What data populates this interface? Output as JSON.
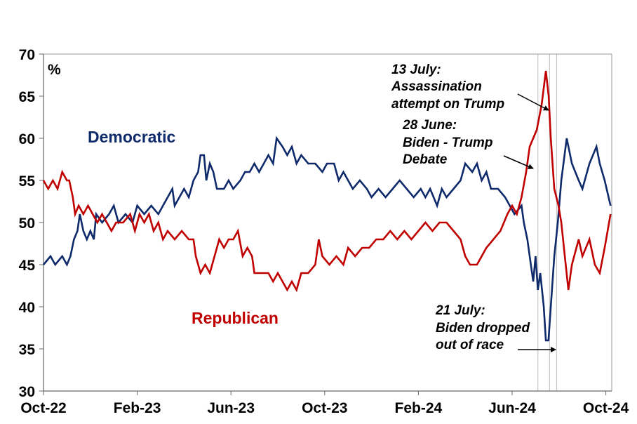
{
  "chart_data": {
    "type": "line",
    "title": "",
    "ylabel": "%",
    "xlabel": "",
    "ylim": [
      30,
      70
    ],
    "yticks": [
      "30",
      "35",
      "40",
      "45",
      "50",
      "55",
      "60",
      "65",
      "70"
    ],
    "x_unit": "months since Oct-22",
    "xlim": [
      0,
      24.2
    ],
    "xticks": [
      {
        "label": "Oct-22",
        "month": 0
      },
      {
        "label": "Feb-23",
        "month": 4
      },
      {
        "label": "Jun-23",
        "month": 8
      },
      {
        "label": "Oct-23",
        "month": 12
      },
      {
        "label": "Feb-24",
        "month": 16
      },
      {
        "label": "Jun-24",
        "month": 20
      },
      {
        "label": "Oct-24",
        "month": 24
      }
    ],
    "grid": false,
    "series": [
      {
        "name": "Democratic",
        "color": "#0f2a6b",
        "points": [
          [
            0,
            45
          ],
          [
            0.3,
            46
          ],
          [
            0.5,
            45
          ],
          [
            0.8,
            46
          ],
          [
            1.0,
            45
          ],
          [
            1.15,
            46
          ],
          [
            1.3,
            48
          ],
          [
            1.45,
            49
          ],
          [
            1.55,
            51
          ],
          [
            1.7,
            49
          ],
          [
            1.85,
            48
          ],
          [
            2.0,
            49
          ],
          [
            2.15,
            48
          ],
          [
            2.25,
            51
          ],
          [
            2.5,
            50
          ],
          [
            2.8,
            51
          ],
          [
            3.0,
            52
          ],
          [
            3.2,
            50
          ],
          [
            3.5,
            51
          ],
          [
            3.8,
            50
          ],
          [
            4.0,
            52
          ],
          [
            4.3,
            51
          ],
          [
            4.6,
            52
          ],
          [
            4.9,
            51
          ],
          [
            5.1,
            52
          ],
          [
            5.3,
            53
          ],
          [
            5.5,
            54
          ],
          [
            5.6,
            52
          ],
          [
            5.8,
            53
          ],
          [
            6.0,
            54
          ],
          [
            6.2,
            53
          ],
          [
            6.4,
            55
          ],
          [
            6.6,
            56
          ],
          [
            6.7,
            58
          ],
          [
            6.85,
            58
          ],
          [
            6.95,
            55
          ],
          [
            7.1,
            57
          ],
          [
            7.25,
            56
          ],
          [
            7.4,
            54
          ],
          [
            7.7,
            54
          ],
          [
            7.9,
            55
          ],
          [
            8.1,
            54
          ],
          [
            8.4,
            55
          ],
          [
            8.6,
            56
          ],
          [
            8.8,
            56
          ],
          [
            9.0,
            57
          ],
          [
            9.2,
            56
          ],
          [
            9.4,
            57
          ],
          [
            9.6,
            58
          ],
          [
            9.8,
            57
          ],
          [
            9.95,
            60
          ],
          [
            10.2,
            59
          ],
          [
            10.4,
            58
          ],
          [
            10.6,
            59
          ],
          [
            10.8,
            57
          ],
          [
            11.0,
            58
          ],
          [
            11.3,
            57
          ],
          [
            11.6,
            57
          ],
          [
            11.9,
            56
          ],
          [
            12.1,
            57
          ],
          [
            12.4,
            57
          ],
          [
            12.6,
            55
          ],
          [
            12.8,
            56
          ],
          [
            13.0,
            55
          ],
          [
            13.2,
            54
          ],
          [
            13.5,
            55
          ],
          [
            13.8,
            54
          ],
          [
            14.0,
            53
          ],
          [
            14.3,
            54
          ],
          [
            14.6,
            53
          ],
          [
            14.9,
            54
          ],
          [
            15.2,
            55
          ],
          [
            15.5,
            54
          ],
          [
            15.8,
            53
          ],
          [
            16.1,
            54
          ],
          [
            16.3,
            53
          ],
          [
            16.5,
            54
          ],
          [
            16.8,
            52
          ],
          [
            17.0,
            54
          ],
          [
            17.2,
            53
          ],
          [
            17.5,
            54
          ],
          [
            17.8,
            55
          ],
          [
            18.0,
            57
          ],
          [
            18.3,
            56
          ],
          [
            18.5,
            57
          ],
          [
            18.7,
            55
          ],
          [
            18.9,
            56
          ],
          [
            19.1,
            54
          ],
          [
            19.4,
            54
          ],
          [
            19.7,
            53
          ],
          [
            19.9,
            52
          ],
          [
            20.1,
            51
          ],
          [
            20.4,
            52
          ],
          [
            20.5,
            50
          ],
          [
            20.65,
            48
          ],
          [
            20.8,
            45
          ],
          [
            20.9,
            43
          ],
          [
            21.0,
            46
          ],
          [
            21.1,
            42
          ],
          [
            21.2,
            44
          ],
          [
            21.35,
            40
          ],
          [
            21.44,
            36
          ],
          [
            21.55,
            36
          ],
          [
            21.65,
            40
          ],
          [
            21.8,
            46
          ],
          [
            21.95,
            50
          ],
          [
            22.1,
            55
          ],
          [
            22.33,
            60
          ],
          [
            22.55,
            57
          ],
          [
            22.84,
            55
          ],
          [
            23.0,
            54
          ],
          [
            23.3,
            57
          ],
          [
            23.6,
            59
          ],
          [
            23.74,
            57
          ],
          [
            23.95,
            55
          ],
          [
            24.2,
            52
          ]
        ]
      },
      {
        "name": "Republican",
        "color": "#c00000",
        "points": [
          [
            0,
            55
          ],
          [
            0.2,
            54
          ],
          [
            0.4,
            55
          ],
          [
            0.6,
            54
          ],
          [
            0.8,
            56
          ],
          [
            1.0,
            55
          ],
          [
            1.1,
            55
          ],
          [
            1.25,
            53
          ],
          [
            1.35,
            51
          ],
          [
            1.5,
            52
          ],
          [
            1.7,
            51
          ],
          [
            1.9,
            52
          ],
          [
            2.1,
            51
          ],
          [
            2.3,
            50
          ],
          [
            2.5,
            51
          ],
          [
            2.7,
            50
          ],
          [
            2.9,
            49
          ],
          [
            3.1,
            50
          ],
          [
            3.4,
            50
          ],
          [
            3.7,
            51
          ],
          [
            3.9,
            49
          ],
          [
            4.1,
            51
          ],
          [
            4.3,
            50
          ],
          [
            4.5,
            51
          ],
          [
            4.7,
            49
          ],
          [
            4.9,
            50
          ],
          [
            5.1,
            48
          ],
          [
            5.3,
            49
          ],
          [
            5.6,
            48
          ],
          [
            5.9,
            49
          ],
          [
            6.2,
            48
          ],
          [
            6.4,
            48
          ],
          [
            6.5,
            46
          ],
          [
            6.7,
            44
          ],
          [
            6.9,
            45
          ],
          [
            7.1,
            44
          ],
          [
            7.3,
            46
          ],
          [
            7.5,
            48
          ],
          [
            7.7,
            47
          ],
          [
            7.9,
            48
          ],
          [
            8.1,
            48
          ],
          [
            8.3,
            49
          ],
          [
            8.5,
            46
          ],
          [
            8.7,
            47
          ],
          [
            8.9,
            46
          ],
          [
            9.0,
            44
          ],
          [
            9.3,
            44
          ],
          [
            9.6,
            44
          ],
          [
            9.8,
            43
          ],
          [
            10.0,
            44
          ],
          [
            10.2,
            43
          ],
          [
            10.4,
            42
          ],
          [
            10.6,
            43
          ],
          [
            10.8,
            42
          ],
          [
            11.0,
            44
          ],
          [
            11.3,
            44
          ],
          [
            11.6,
            45
          ],
          [
            11.75,
            48
          ],
          [
            11.9,
            46
          ],
          [
            12.2,
            45
          ],
          [
            12.5,
            46
          ],
          [
            12.8,
            45
          ],
          [
            13.0,
            47
          ],
          [
            13.3,
            46
          ],
          [
            13.6,
            47
          ],
          [
            13.9,
            47
          ],
          [
            14.2,
            48
          ],
          [
            14.5,
            48
          ],
          [
            14.8,
            49
          ],
          [
            15.1,
            48
          ],
          [
            15.4,
            49
          ],
          [
            15.7,
            48
          ],
          [
            16.0,
            49
          ],
          [
            16.3,
            50
          ],
          [
            16.6,
            49
          ],
          [
            16.9,
            50
          ],
          [
            17.2,
            50
          ],
          [
            17.5,
            49
          ],
          [
            17.8,
            48
          ],
          [
            18.0,
            46
          ],
          [
            18.2,
            45
          ],
          [
            18.5,
            45
          ],
          [
            18.7,
            46
          ],
          [
            18.9,
            47
          ],
          [
            19.2,
            48
          ],
          [
            19.5,
            49
          ],
          [
            19.8,
            51
          ],
          [
            20.0,
            52
          ],
          [
            20.2,
            51
          ],
          [
            20.4,
            53
          ],
          [
            20.6,
            56
          ],
          [
            20.75,
            59
          ],
          [
            21.05,
            61
          ],
          [
            21.26,
            64
          ],
          [
            21.44,
            68
          ],
          [
            21.56,
            65
          ],
          [
            21.65,
            60
          ],
          [
            21.8,
            54
          ],
          [
            21.98,
            52
          ],
          [
            22.1,
            50
          ],
          [
            22.25,
            46
          ],
          [
            22.4,
            42
          ],
          [
            22.55,
            45
          ],
          [
            22.84,
            48
          ],
          [
            23.0,
            46
          ],
          [
            23.3,
            48
          ],
          [
            23.53,
            45
          ],
          [
            23.74,
            44
          ],
          [
            23.95,
            47
          ],
          [
            24.2,
            51
          ]
        ]
      }
    ],
    "series_labels": {
      "democratic": "Democratic",
      "republican": "Republican"
    },
    "event_lines_months": [
      21.1,
      21.6,
      21.9
    ],
    "annotations": {
      "assassination": [
        "13 July:",
        "Assassination",
        "attempt on Trump"
      ],
      "debate": [
        "28 June:",
        "Biden - Trump",
        "Debate"
      ],
      "dropout": [
        "21 July:",
        "Biden dropped",
        "out of race"
      ]
    }
  }
}
